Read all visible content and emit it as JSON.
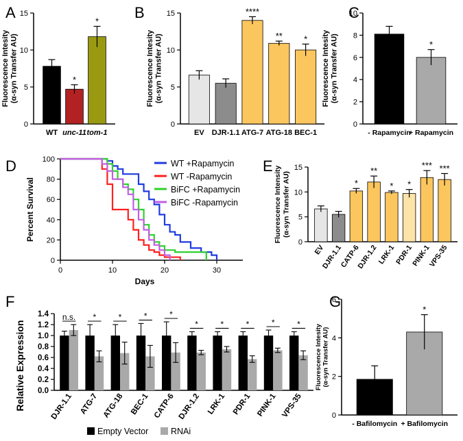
{
  "colors": {
    "black": "#000000",
    "red": "#b22222",
    "olive": "#9a9a12",
    "light_gray": "#e6e6e6",
    "mid_gray": "#8c8c8c",
    "orange": "#fbc65e",
    "light_orange": "#fde3a8",
    "bar_gray": "#a9a9a9",
    "blue": "#1f3be0",
    "red_line": "#ff1f1f",
    "green": "#2ed12e",
    "purple": "#c25ee6"
  },
  "chart_data": [
    {
      "panel": "A",
      "type": "bar",
      "ylabel": "Fluorescence Intesity\n(α-syn Transfer AU)",
      "ylim": [
        0,
        15
      ],
      "yticks": [
        "0",
        "5",
        "10",
        "15"
      ],
      "categories": [
        "WT",
        "unc-11",
        "tom-1"
      ],
      "values": [
        7.8,
        4.7,
        11.8
      ],
      "errors": [
        0.9,
        0.6,
        1.4
      ],
      "significance": [
        "",
        "*",
        "*"
      ],
      "bar_colors": [
        "#000000",
        "#b22222",
        "#9a9a12"
      ]
    },
    {
      "panel": "B",
      "type": "bar",
      "ylabel": "Fluorescence Intesity\n(α-syn Transfer AU)",
      "ylim": [
        0,
        15
      ],
      "yticks": [
        "0",
        "5",
        "10",
        "15"
      ],
      "categories": [
        "EV",
        "DJR-1.1",
        "ATG-7",
        "ATG-18",
        "BEC-1"
      ],
      "values": [
        6.6,
        5.5,
        14.0,
        10.9,
        10.0
      ],
      "errors": [
        0.6,
        0.6,
        0.5,
        0.3,
        0.8
      ],
      "significance": [
        "",
        "",
        "****",
        "**",
        "*"
      ],
      "bar_colors": [
        "#e6e6e6",
        "#8c8c8c",
        "#fbc65e",
        "#fbc65e",
        "#fbc65e"
      ]
    },
    {
      "panel": "C",
      "type": "bar",
      "ylabel": "Fluorescence Intesity\n(α-syn Transfer AU)",
      "ylim": [
        0,
        10
      ],
      "yticks": [
        "0",
        "2",
        "4",
        "6",
        "8",
        "10"
      ],
      "categories": [
        "- Rapamycin",
        "+ Rapamycin"
      ],
      "values": [
        8.1,
        6.0
      ],
      "errors": [
        0.7,
        0.7
      ],
      "significance": [
        "",
        "*"
      ],
      "bar_colors": [
        "#000000",
        "#a9a9a9"
      ]
    },
    {
      "panel": "D",
      "type": "line",
      "xlabel": "Days",
      "ylabel": "Percent Survival",
      "xlim": [
        0,
        35
      ],
      "ylim": [
        0,
        100
      ],
      "xticks": [
        "0",
        "10",
        "20",
        "30"
      ],
      "yticks": [
        "0",
        "20",
        "40",
        "60",
        "80",
        "100"
      ],
      "series": [
        {
          "name": "WT +Rapamycin",
          "color": "#1f3be0",
          "x": [
            0,
            8,
            9,
            10,
            11,
            12,
            14,
            15,
            16,
            17,
            18,
            19,
            20,
            21,
            22,
            23,
            25,
            27,
            29,
            30
          ],
          "y": [
            100,
            100,
            98,
            93,
            90,
            85,
            85,
            75,
            68,
            60,
            55,
            45,
            35,
            28,
            25,
            18,
            12,
            8,
            5,
            0
          ]
        },
        {
          "name": "WT -Rapamycin",
          "color": "#ff1f1f",
          "x": [
            0,
            7,
            8,
            9,
            10,
            12,
            13,
            14,
            15,
            16,
            17,
            18,
            19,
            20,
            23
          ],
          "y": [
            100,
            100,
            90,
            75,
            50,
            50,
            40,
            30,
            20,
            15,
            10,
            8,
            5,
            3,
            0
          ]
        },
        {
          "name": "BiFC +Rapamycin",
          "color": "#2ed12e",
          "x": [
            0,
            8,
            9,
            10,
            11,
            12,
            13,
            14,
            15,
            16,
            17,
            18,
            19,
            20,
            22,
            28
          ],
          "y": [
            100,
            100,
            95,
            88,
            80,
            75,
            70,
            60,
            50,
            35,
            25,
            18,
            14,
            10,
            8,
            0
          ]
        },
        {
          "name": "BiFC -Rapamycin",
          "color": "#c25ee6",
          "x": [
            0,
            7,
            8,
            9,
            10,
            12,
            13,
            14,
            15,
            16,
            17,
            18,
            19,
            20,
            21
          ],
          "y": [
            100,
            100,
            95,
            88,
            80,
            72,
            65,
            50,
            40,
            30,
            20,
            15,
            10,
            5,
            0
          ]
        }
      ]
    },
    {
      "panel": "E",
      "type": "bar",
      "ylabel": "Fluorescence Intensity\n(α-syn Transfer AU)",
      "ylim": [
        0,
        15
      ],
      "yticks": [
        "0",
        "5",
        "10",
        "15"
      ],
      "categories": [
        "EV",
        "DJR-1.1",
        "CATP-6",
        "DJR-1.2",
        "LRK-1",
        "PDR-1",
        "PINK-1",
        "VPS-35"
      ],
      "values": [
        6.6,
        5.5,
        10.2,
        12.0,
        9.9,
        9.7,
        12.9,
        12.5
      ],
      "errors": [
        0.6,
        0.6,
        0.5,
        1.2,
        0.3,
        0.8,
        1.4,
        1.2
      ],
      "significance": [
        "",
        "",
        "*",
        "**",
        "*",
        "*",
        "***",
        "***"
      ],
      "bar_colors": [
        "#e6e6e6",
        "#8c8c8c",
        "#fbc65e",
        "#fbc65e",
        "#fbc65e",
        "#fde3a8",
        "#fbc65e",
        "#fbc65e"
      ]
    },
    {
      "panel": "F",
      "type": "bar",
      "ylabel": "Relative Expression",
      "ylim": [
        0,
        1.4
      ],
      "yticks": [
        "0.0",
        "0.2",
        "0.4",
        "0.6",
        "0.8",
        "1.0",
        "1.2",
        "1.4"
      ],
      "categories": [
        "DJR-1.1",
        "ATG-7",
        "ATG-18",
        "BEC-1",
        "CATP-6",
        "DJR-1.2",
        "LRK-1",
        "PDR-1",
        "PINK-1",
        "VPS-35"
      ],
      "significance": [
        "n.s.",
        "*",
        "*",
        "*",
        "*",
        "*",
        "*",
        "*",
        "*",
        "*"
      ],
      "series": [
        {
          "name": "Empty Vector",
          "color": "#000000",
          "values": [
            1.0,
            1.0,
            1.0,
            1.0,
            1.0,
            1.0,
            1.0,
            1.0,
            1.0,
            1.0
          ],
          "errors": [
            0.08,
            0.2,
            0.2,
            0.22,
            0.25,
            0.07,
            0.07,
            0.07,
            0.1,
            0.07
          ]
        },
        {
          "name": "RNAi",
          "color": "#a9a9a9",
          "values": [
            1.1,
            0.62,
            0.68,
            0.62,
            0.69,
            0.69,
            0.75,
            0.57,
            0.73,
            0.64
          ],
          "errors": [
            0.1,
            0.1,
            0.2,
            0.2,
            0.18,
            0.04,
            0.05,
            0.06,
            0.04,
            0.08
          ]
        }
      ]
    },
    {
      "panel": "G",
      "type": "bar",
      "ylabel": "Fluorescence Intesity\n(α-syn Transfer AU)",
      "ylim": [
        0,
        6
      ],
      "yticks": [
        "0",
        "2",
        "4",
        "6"
      ],
      "categories": [
        "- Bafilomycin",
        "+ Bafilomycin"
      ],
      "values": [
        1.85,
        4.3
      ],
      "errors": [
        0.7,
        0.9
      ],
      "significance": [
        "",
        "*"
      ],
      "bar_colors": [
        "#000000",
        "#a9a9a9"
      ]
    }
  ]
}
